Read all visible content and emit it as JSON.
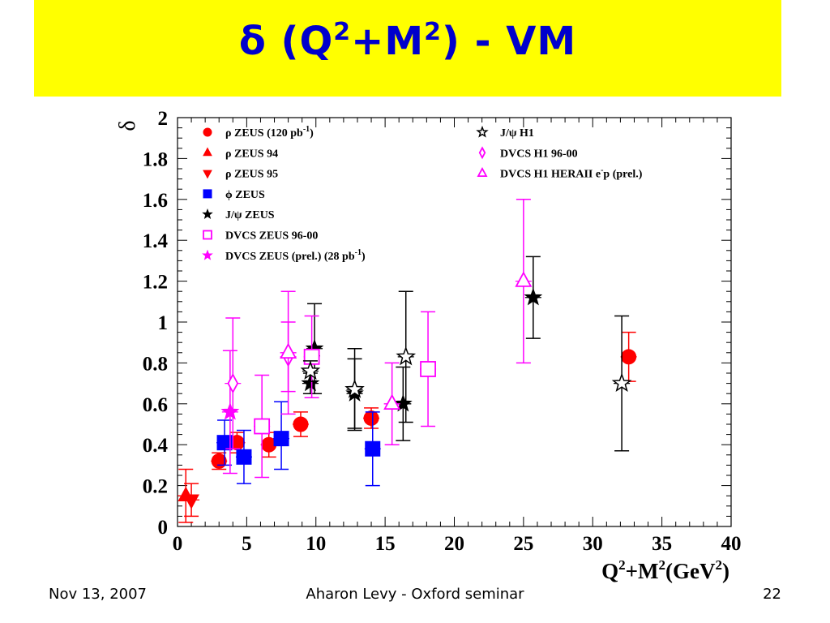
{
  "slide": {
    "title_main": "δ (Q",
    "title_sup1": "2",
    "title_mid": "+M",
    "title_sup2": "2",
    "title_end": ")  - VM",
    "footer_date": "Nov 13, 2007",
    "footer_center": "Aharon Levy - Oxford seminar",
    "footer_page": "22",
    "title_bar_color": "#ffff00",
    "title_color": "#0000cc"
  },
  "chart_data": {
    "type": "scatter",
    "xlim": [
      0,
      40
    ],
    "ylim": [
      0,
      2
    ],
    "x_ticks": [
      0,
      5,
      10,
      15,
      20,
      25,
      30,
      35,
      40
    ],
    "y_ticks": [
      0,
      0.2,
      0.4,
      0.6,
      0.8,
      1,
      1.2,
      1.4,
      1.6,
      1.8,
      2
    ],
    "y_tick_labels": [
      "0",
      "0.2",
      "0.4",
      "0.6",
      "0.8",
      "1",
      "1.2",
      "1.4",
      "1.6",
      "1.8",
      "2"
    ],
    "ylabel": "δ",
    "xlabel_parts": [
      "Q",
      "2",
      "+M",
      "2",
      "(GeV",
      "2",
      ")"
    ],
    "grid": false,
    "legend_placement": "top-left and top-center",
    "series": [
      {
        "name": "ρ ZEUS (120 pb-1)",
        "marker": "circle",
        "color": "#ff0000",
        "filled": true,
        "points": [
          [
            3,
            0.32,
            0.04,
            0.04
          ],
          [
            4.3,
            0.41,
            0.05,
            0.05
          ],
          [
            6.6,
            0.4,
            0.06,
            0.06
          ],
          [
            8.9,
            0.5,
            0.06,
            0.06
          ],
          [
            14,
            0.53,
            0.05,
            0.05
          ],
          [
            32.6,
            0.83,
            0.12,
            0.12
          ]
        ]
      },
      {
        "name": "ρ ZEUS 94",
        "marker": "triangle-up",
        "color": "#ff0000",
        "filled": true,
        "points": [
          [
            0.6,
            0.15,
            0.13,
            0.13
          ]
        ]
      },
      {
        "name": "ρ ZEUS 95",
        "marker": "triangle-down",
        "color": "#ff0000",
        "filled": true,
        "points": [
          [
            1,
            0.13,
            0.08,
            0.08
          ]
        ]
      },
      {
        "name": "ϕ ZEUS",
        "marker": "square",
        "color": "#0000ff",
        "filled": true,
        "points": [
          [
            3.4,
            0.41,
            0.11,
            0.11
          ],
          [
            4.8,
            0.34,
            0.13,
            0.13
          ],
          [
            7.5,
            0.43,
            0.15,
            0.18
          ],
          [
            14.1,
            0.38,
            0.18,
            0.18
          ]
        ]
      },
      {
        "name": "J/ψ ZEUS",
        "marker": "star",
        "color": "#000000",
        "filled": true,
        "points": [
          [
            9.6,
            0.7,
            0.05,
            0.05
          ],
          [
            9.9,
            0.87,
            0.22,
            0.22
          ],
          [
            12.8,
            0.65,
            0.17,
            0.17
          ],
          [
            16.3,
            0.6,
            0.18,
            0.18
          ],
          [
            25.7,
            1.12,
            0.2,
            0.2
          ]
        ]
      },
      {
        "name": "DVCS ZEUS 96-00",
        "marker": "square",
        "color": "#ff00ff",
        "filled": false,
        "points": [
          [
            6.1,
            0.49,
            0.25,
            0.25
          ],
          [
            9.7,
            0.83,
            0.2,
            0.2
          ],
          [
            18.1,
            0.77,
            0.28,
            0.28
          ]
        ]
      },
      {
        "name": "DVCS ZEUS (prel.) (28 pb-1)",
        "marker": "star",
        "color": "#ff00ff",
        "filled": true,
        "points": [
          [
            3.8,
            0.56,
            0.3,
            0.3
          ]
        ]
      },
      {
        "name": "J/ψ H1",
        "marker": "star",
        "color": "#000000",
        "filled": false,
        "points": [
          [
            9.6,
            0.76,
            0.05,
            0.05
          ],
          [
            12.8,
            0.67,
            0.2,
            0.2
          ],
          [
            16.5,
            0.83,
            0.32,
            0.32
          ],
          [
            32.1,
            0.7,
            0.33,
            0.33
          ]
        ]
      },
      {
        "name": "DVCS H1 96-00",
        "marker": "diamond",
        "color": "#ff00ff",
        "filled": false,
        "points": [
          [
            4,
            0.7,
            0.32,
            0.32
          ],
          [
            8,
            0.83,
            0.17,
            0.17
          ]
        ]
      },
      {
        "name": "DVCS H1 HERAII e-p (prel.)",
        "marker": "triangle-up",
        "color": "#ff00ff",
        "filled": false,
        "points": [
          [
            8,
            0.85,
            0.3,
            0.3
          ],
          [
            15.5,
            0.6,
            0.2,
            0.2
          ],
          [
            25,
            1.2,
            0.4,
            0.4
          ]
        ]
      }
    ],
    "legend": [
      {
        "label": "ρ ZEUS (120 pb",
        "sup": "-1",
        "tail": ")",
        "series": 0
      },
      {
        "label": "ρ ZEUS 94",
        "sup": "",
        "tail": "",
        "series": 1
      },
      {
        "label": "ρ ZEUS 95",
        "sup": "",
        "tail": "",
        "series": 2
      },
      {
        "label": "ϕ ZEUS",
        "sup": "",
        "tail": "",
        "series": 3
      },
      {
        "label": "J/ψ ZEUS",
        "sup": "",
        "tail": "",
        "series": 4
      },
      {
        "label": "DVCS ZEUS 96-00",
        "sup": "",
        "tail": "",
        "series": 5
      },
      {
        "label": "DVCS ZEUS (prel.) (28 pb",
        "sup": "-1",
        "tail": ")",
        "series": 6
      },
      {
        "label": "J/ψ H1",
        "sup": "",
        "tail": "",
        "series": 7
      },
      {
        "label": "DVCS H1 96-00",
        "sup": "",
        "tail": "",
        "series": 8
      },
      {
        "label": "DVCS H1 HERAII e",
        "sup": "-",
        "tail": "p (prel.)",
        "series": 9
      }
    ]
  }
}
